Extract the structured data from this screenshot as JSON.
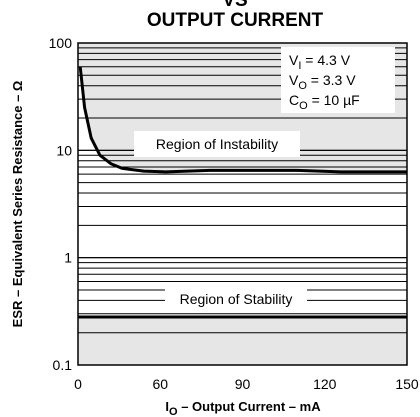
{
  "chart_data": {
    "type": "line",
    "title_line1": "VS",
    "title_line2": "OUTPUT CURRENT",
    "xlabel_main": "I",
    "xlabel_sub": "O",
    "xlabel_rest": " – Output Current – mA",
    "ylabel": "ESR – Equivalent Series Resistance – Ω",
    "x_tick_labels": [
      "0",
      "60",
      "90",
      "120",
      "150"
    ],
    "y_tick_labels": [
      "100",
      "10",
      "1",
      "0.1"
    ],
    "y_scale": "log",
    "ylim": [
      0.1,
      100
    ],
    "xlim": [
      0,
      150
    ],
    "grid": "horizontal log minor lines",
    "annotations": {
      "vi_main": "V",
      "vi_sub": "I",
      "vi_rest": " = 4.3 V",
      "vo_main": "V",
      "vo_sub": "O",
      "vo_rest": " = 3.3 V",
      "co_main": "C",
      "co_sub": "O",
      "co_rest": " = 10 µF"
    },
    "regions": {
      "instability": "Region of Instability",
      "stability": "Region of Stability"
    },
    "series": [
      {
        "values_x": [
          1,
          3,
          6,
          10,
          15,
          20,
          30,
          40,
          50,
          60,
          70,
          80,
          90,
          100,
          110,
          120,
          130,
          140,
          150
        ],
        "values_y": [
          60,
          25,
          13,
          9,
          7.5,
          6.8,
          6.4,
          6.3,
          6.4,
          6.5,
          6.5,
          6.5,
          6.5,
          6.5,
          6.4,
          6.3,
          6.3,
          6.3,
          6.3
        ]
      }
    ],
    "stability_floor": 0.28,
    "colors": {
      "shade": "#e6e6e6",
      "line": "#000000",
      "grid": "#000000"
    }
  }
}
